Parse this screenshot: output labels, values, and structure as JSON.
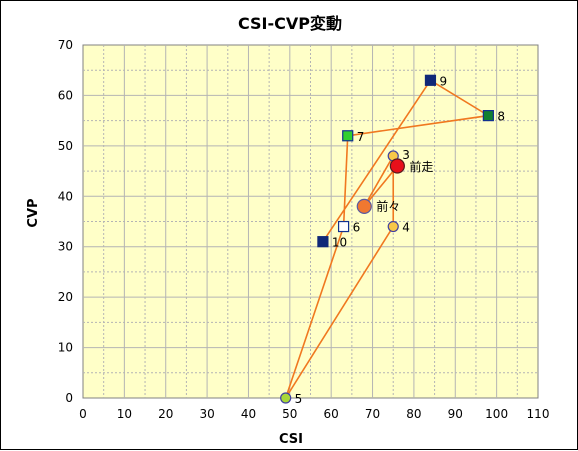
{
  "chart_data": {
    "type": "scatter",
    "title": "CSI-CVP変動",
    "xlabel": "CSI",
    "ylabel": "CVP",
    "xlim": [
      0,
      110
    ],
    "ylim": [
      0,
      70
    ],
    "xticks": [
      0,
      10,
      20,
      30,
      40,
      50,
      60,
      70,
      80,
      90,
      100,
      110
    ],
    "yticks": [
      0,
      10,
      20,
      30,
      40,
      50,
      60,
      70
    ],
    "grid": true,
    "plot_background": "#FFFFC8",
    "grid_color": "#B4B4B4",
    "line_color": "#F07820",
    "path_order": [
      "前走",
      "前々",
      "3",
      "4",
      "5",
      "6",
      "7",
      "8",
      "9",
      "10"
    ],
    "points": [
      {
        "label": "前走",
        "x": 76,
        "y": 46,
        "marker": "circle",
        "fill": "#E8101A",
        "stroke": "#5A1A1A",
        "size": "large"
      },
      {
        "label": "前々",
        "x": 68,
        "y": 38,
        "marker": "circle",
        "fill": "#F07830",
        "stroke": "#5A5AA0",
        "size": "large"
      },
      {
        "label": "3",
        "x": 75,
        "y": 48,
        "marker": "circle",
        "fill": "#F8C848",
        "stroke": "#4040A0",
        "size": "small"
      },
      {
        "label": "4",
        "x": 75,
        "y": 34,
        "marker": "circle",
        "fill": "#F8C848",
        "stroke": "#4040A0",
        "size": "small"
      },
      {
        "label": "5",
        "x": 49,
        "y": 0,
        "marker": "circle",
        "fill": "#A8D838",
        "stroke": "#4040A0",
        "size": "small"
      },
      {
        "label": "6",
        "x": 63,
        "y": 34,
        "marker": "square",
        "fill": "#FFFFFF",
        "stroke": "#103090",
        "size": "small"
      },
      {
        "label": "7",
        "x": 64,
        "y": 52,
        "marker": "square",
        "fill": "#30D030",
        "stroke": "#103090",
        "size": "small"
      },
      {
        "label": "8",
        "x": 98,
        "y": 56,
        "marker": "square",
        "fill": "#108030",
        "stroke": "#103090",
        "size": "small"
      },
      {
        "label": "9",
        "x": 84,
        "y": 63,
        "marker": "square",
        "fill": "#102878",
        "stroke": "#102878",
        "size": "small"
      },
      {
        "label": "10",
        "x": 58,
        "y": 31,
        "marker": "square",
        "fill": "#102878",
        "stroke": "#102878",
        "size": "small"
      }
    ]
  }
}
